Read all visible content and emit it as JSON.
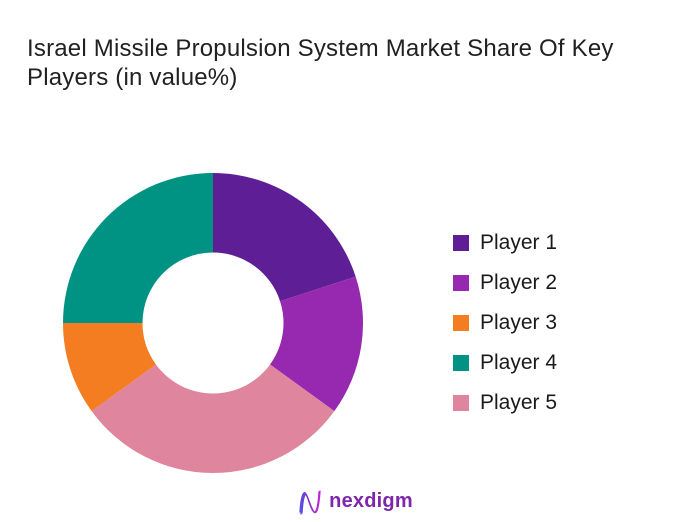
{
  "header": {
    "title_lines": [
      "Israel Missile Propulsion System Market Share Of Key",
      "Players (in value%)"
    ]
  },
  "chart_data": {
    "type": "pie",
    "subtype": "donut",
    "title": "Israel Missile Propulsion System Market Share Of Key Players (in value%)",
    "categories": [
      "Player 1",
      "Player 2",
      "Player 3",
      "Player 4",
      "Player 5"
    ],
    "values": [
      20,
      15,
      10,
      25,
      30
    ],
    "unit": "value%",
    "colors": [
      "#5e1f96",
      "#9729b1",
      "#f47d21",
      "#009384",
      "#df869e"
    ],
    "legend_position": "right",
    "legend_entries": [
      "Player 1",
      "Player 2",
      "Player 3",
      "Player 4",
      "Player 5"
    ],
    "donut_hole_ratio": 0.47,
    "start_angle_deg": 0,
    "direction": "clockwise",
    "draw_order_clockwise_from_top": [
      "Player 1",
      "Player 2",
      "Player 5",
      "Player 3",
      "Player 4"
    ],
    "data_labels_shown": false,
    "background": "#ffffff"
  },
  "footer": {
    "logo_text": "nexdigm"
  }
}
